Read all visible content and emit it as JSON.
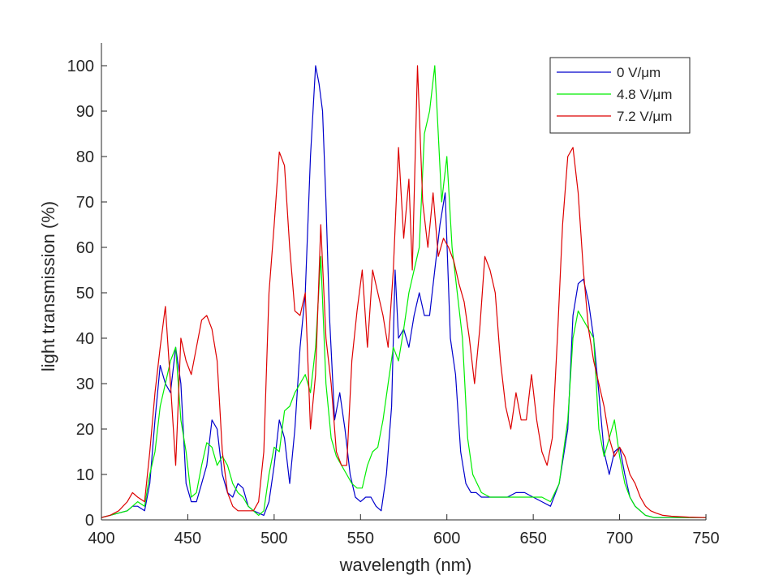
{
  "chart_data": {
    "type": "line",
    "xlabel": "wavelength (nm)",
    "ylabel": "light transmission (%)",
    "xlim": [
      400,
      750
    ],
    "ylim": [
      0,
      105
    ],
    "xticks": [
      "400",
      "450",
      "500",
      "550",
      "600",
      "650",
      "700",
      "750"
    ],
    "yticks": [
      "0",
      "10",
      "20",
      "30",
      "40",
      "50",
      "60",
      "70",
      "80",
      "90",
      "100"
    ],
    "grid": false,
    "legend_position": "top-right",
    "series": [
      {
        "name": "0 V/μm",
        "color": "#0000cc",
        "x": [
          400,
          405,
          410,
          415,
          418,
          421,
          425,
          428,
          431,
          434,
          437,
          440,
          443,
          446,
          449,
          452,
          455,
          458,
          461,
          464,
          467,
          470,
          473,
          476,
          479,
          482,
          485,
          488,
          491,
          494,
          497,
          500,
          503,
          506,
          509,
          512,
          515,
          518,
          521,
          524,
          526,
          528,
          530,
          532,
          535,
          538,
          541,
          544,
          547,
          550,
          553,
          556,
          559,
          562,
          565,
          568,
          570,
          572,
          575,
          578,
          581,
          584,
          587,
          590,
          593,
          596,
          599,
          602,
          605,
          608,
          611,
          614,
          617,
          620,
          625,
          630,
          635,
          640,
          645,
          650,
          655,
          660,
          665,
          670,
          673,
          676,
          679,
          682,
          685,
          688,
          691,
          694,
          697,
          700,
          703,
          706,
          709,
          712,
          715,
          720,
          730,
          740,
          750
        ],
        "y": [
          0.5,
          1,
          1.5,
          2,
          3,
          3,
          2,
          8,
          22,
          34,
          30,
          28,
          38,
          30,
          8,
          4,
          4,
          8,
          12,
          22,
          20,
          10,
          6,
          5,
          8,
          7,
          3,
          2,
          1.5,
          1,
          4,
          12,
          22,
          18,
          8,
          20,
          38,
          50,
          80,
          100,
          96,
          90,
          70,
          45,
          22,
          28,
          20,
          10,
          5,
          4,
          5,
          5,
          3,
          2,
          10,
          25,
          55,
          40,
          42,
          38,
          45,
          50,
          45,
          45,
          55,
          65,
          72,
          40,
          32,
          15,
          8,
          6,
          6,
          5,
          5,
          5,
          5,
          6,
          6,
          5,
          4,
          3,
          8,
          20,
          45,
          52,
          53,
          48,
          40,
          28,
          15,
          10,
          15,
          16,
          10,
          5,
          3,
          2,
          1,
          0.5,
          0.5,
          0.5,
          0.5
        ]
      },
      {
        "name": "4.8 V/μm",
        "color": "#00ee00",
        "x": [
          400,
          405,
          410,
          415,
          418,
          421,
          425,
          428,
          431,
          434,
          437,
          440,
          443,
          446,
          449,
          452,
          455,
          458,
          461,
          464,
          467,
          470,
          473,
          476,
          479,
          482,
          485,
          488,
          491,
          494,
          497,
          500,
          503,
          506,
          509,
          512,
          515,
          518,
          521,
          524,
          527,
          530,
          533,
          536,
          539,
          542,
          545,
          548,
          551,
          554,
          557,
          560,
          563,
          566,
          569,
          572,
          575,
          578,
          581,
          584,
          587,
          590,
          593,
          595,
          597,
          600,
          603,
          606,
          609,
          612,
          615,
          620,
          625,
          630,
          635,
          640,
          645,
          650,
          655,
          660,
          665,
          670,
          673,
          676,
          679,
          682,
          685,
          688,
          691,
          694,
          697,
          700,
          703,
          706,
          709,
          712,
          715,
          720,
          730,
          740,
          750
        ],
        "y": [
          0.5,
          1,
          1.5,
          2,
          3,
          4,
          3,
          10,
          15,
          25,
          30,
          35,
          38,
          22,
          15,
          5,
          6,
          12,
          17,
          16,
          12,
          14,
          12,
          8,
          6,
          5,
          3,
          2,
          1,
          2,
          10,
          16,
          15,
          24,
          25,
          28,
          30,
          32,
          28,
          38,
          58,
          30,
          18,
          14,
          12,
          10,
          8,
          7,
          7,
          12,
          15,
          16,
          22,
          30,
          38,
          35,
          42,
          50,
          55,
          60,
          85,
          90,
          100,
          85,
          70,
          80,
          60,
          50,
          40,
          18,
          10,
          6,
          5,
          5,
          5,
          5,
          5,
          5,
          5,
          4,
          8,
          22,
          40,
          46,
          44,
          42,
          40,
          20,
          14,
          18,
          22,
          14,
          8,
          5,
          3,
          2,
          1,
          0.5,
          0.5,
          0.5,
          0.5
        ]
      },
      {
        "name": "7.2 V/μm",
        "color": "#dd0000",
        "x": [
          400,
          405,
          410,
          415,
          418,
          421,
          425,
          428,
          431,
          434,
          437,
          440,
          443,
          446,
          449,
          452,
          455,
          458,
          461,
          464,
          467,
          470,
          473,
          476,
          479,
          482,
          485,
          488,
          491,
          494,
          497,
          500,
          503,
          506,
          509,
          512,
          515,
          518,
          521,
          524,
          527,
          530,
          533,
          536,
          539,
          542,
          545,
          548,
          551,
          554,
          557,
          560,
          563,
          566,
          569,
          572,
          575,
          578,
          580,
          583,
          586,
          589,
          592,
          595,
          598,
          601,
          604,
          607,
          610,
          613,
          616,
          619,
          622,
          625,
          628,
          631,
          634,
          637,
          640,
          643,
          646,
          649,
          652,
          655,
          658,
          661,
          664,
          667,
          670,
          673,
          676,
          679,
          682,
          685,
          688,
          691,
          694,
          697,
          700,
          703,
          706,
          709,
          712,
          715,
          718,
          721,
          725,
          730,
          740,
          750
        ],
        "y": [
          0.5,
          1,
          2,
          4,
          6,
          5,
          4,
          15,
          28,
          38,
          47,
          30,
          12,
          40,
          35,
          32,
          38,
          44,
          45,
          42,
          35,
          15,
          6,
          3,
          2,
          2,
          2,
          2,
          4,
          15,
          50,
          65,
          81,
          78,
          60,
          46,
          45,
          50,
          20,
          32,
          65,
          40,
          30,
          15,
          12,
          12,
          35,
          46,
          55,
          38,
          55,
          50,
          45,
          38,
          55,
          82,
          62,
          75,
          55,
          100,
          70,
          60,
          72,
          58,
          62,
          60,
          57,
          52,
          48,
          40,
          30,
          42,
          58,
          55,
          50,
          35,
          25,
          20,
          28,
          22,
          22,
          32,
          22,
          15,
          12,
          18,
          40,
          65,
          80,
          82,
          72,
          55,
          42,
          35,
          30,
          25,
          18,
          14,
          16,
          14,
          10,
          8,
          5,
          3,
          2,
          1.5,
          1,
          0.8,
          0.6,
          0.5
        ]
      }
    ]
  }
}
